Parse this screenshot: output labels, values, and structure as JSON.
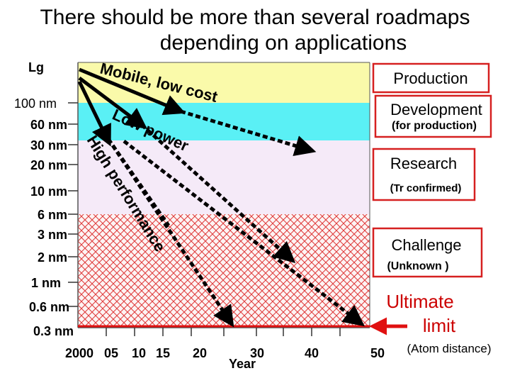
{
  "title": {
    "line1": "There should be more than several roadmaps",
    "line2": "depending on applications"
  },
  "y_axis": {
    "label": "Lg",
    "ticks": [
      "100 nm",
      "60 nm",
      "30 nm",
      "20 nm",
      "10 nm",
      "6 nm",
      "3 nm",
      "2 nm",
      "1 nm",
      "0.6 nm",
      "0.3 nm"
    ]
  },
  "x_axis": {
    "label": "Year",
    "ticks": [
      "2000",
      "05",
      "10",
      "15",
      "20",
      "30",
      "40",
      "50"
    ]
  },
  "regions": {
    "production": "Production",
    "development": "Development",
    "development_note": "(for production)",
    "research": "Research",
    "research_note": "(Tr confirmed)",
    "challenge": "Challenge",
    "challenge_note": "(Unknown )",
    "ultimate_line1": "Ultimate",
    "ultimate_line2": "limit",
    "ultimate_note": "(Atom distance)"
  },
  "roadmap_labels": {
    "mobile": "Mobile, low cost",
    "low_power": "Low power",
    "high_perf": "High performance"
  },
  "colors": {
    "production": "#fafaaa",
    "development": "#5af0f5",
    "research": "#f5eaf8",
    "challenge_hatch": "#e04040",
    "limit": "#e01010",
    "arrow": "#000000"
  }
}
